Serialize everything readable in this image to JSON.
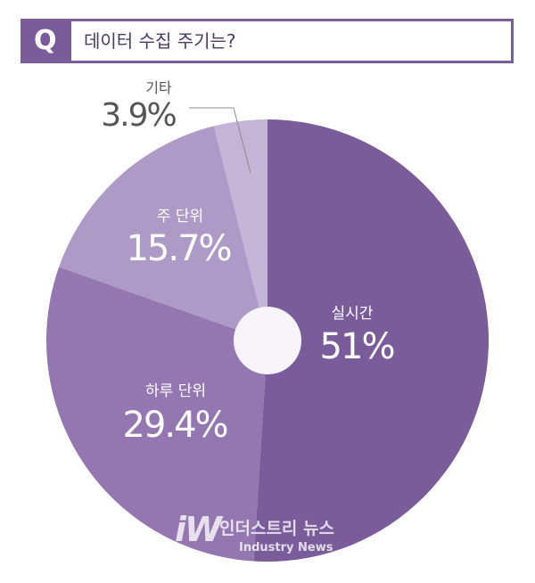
{
  "question": {
    "badge": "Q",
    "text": "데이터 수집 주기는?"
  },
  "chart_data": {
    "type": "pie",
    "title": "데이터 수집 주기는?",
    "start_angle_deg": 0,
    "direction": "clockwise",
    "slices": [
      {
        "label": "실시간",
        "value": 51,
        "display": "51%",
        "color": "#7a5c9a"
      },
      {
        "label": "하루 단위",
        "value": 29.4,
        "display": "29.4%",
        "color": "#9477b0"
      },
      {
        "label": "주 단위",
        "value": 15.7,
        "display": "15.7%",
        "color": "#ae9ac6"
      },
      {
        "label": "기타",
        "value": 3.9,
        "display": "3.9%",
        "color": "#c4b4d6"
      }
    ],
    "center_hole_color": "#f7f5fa"
  },
  "watermark": {
    "logo": "iW",
    "name": "인더스트리 뉴스",
    "subtitle": "Industry News"
  }
}
